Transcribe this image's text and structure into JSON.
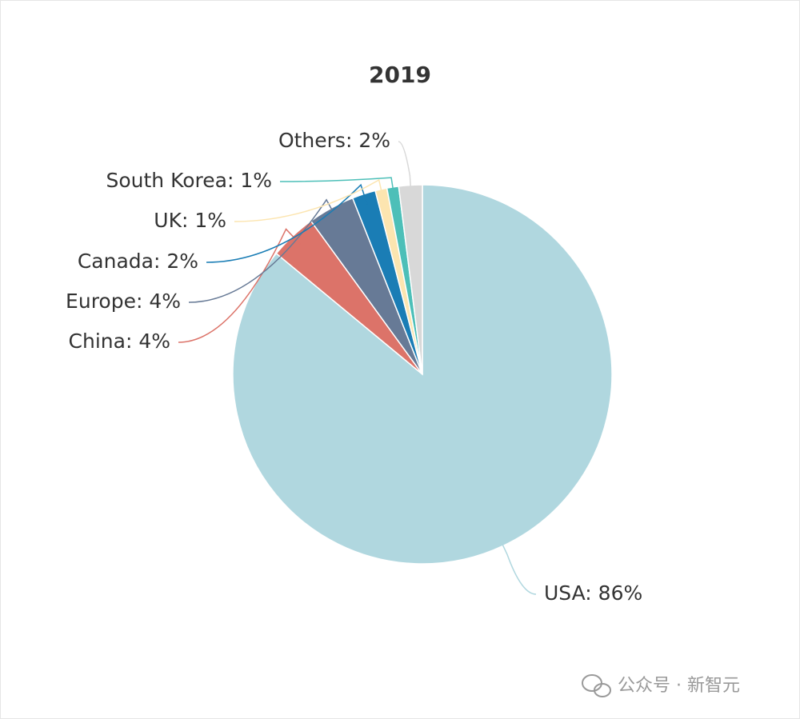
{
  "chart_data": {
    "type": "pie",
    "title": "2019",
    "values": [
      86,
      4,
      4,
      2,
      1,
      1,
      2
    ],
    "value_labels": [
      "USA: 86%",
      "China: 4%",
      "Europe: 4%",
      "Canada: 2%",
      "UK: 1%",
      "South Korea: 1%",
      "Others: 2%"
    ],
    "colors": [
      "#b0d7df",
      "#dc7369",
      "#677a96",
      "#1a7db5",
      "#fce5b0",
      "#4dbfb8",
      "#d8d8d8"
    ]
  },
  "watermark": "公众号 · 新智元"
}
